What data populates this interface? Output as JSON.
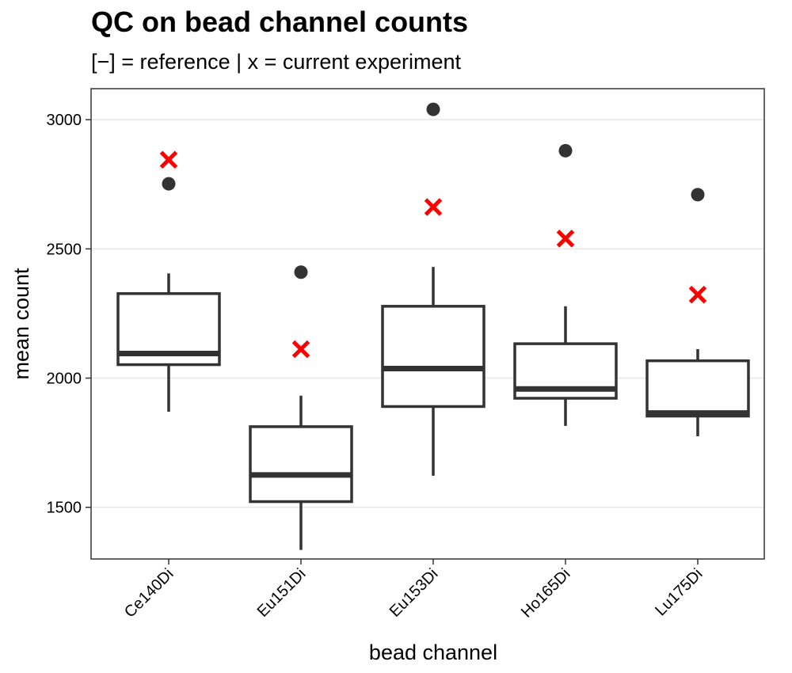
{
  "chart_data": {
    "type": "boxplot",
    "title": "QC on bead channel counts",
    "subtitle": "[−] = reference | x = current experiment",
    "xlabel": "bead channel",
    "ylabel": "mean count",
    "ylim": [
      1300,
      3120
    ],
    "yticks": [
      1500,
      2000,
      2500,
      3000
    ],
    "grid": "horizontal",
    "categories": [
      "Ce140Di",
      "Eu151Di",
      "Eu153Di",
      "Ho165Di",
      "Lu175Di"
    ],
    "boxes": [
      {
        "category": "Ce140Di",
        "whisker_low": 1870,
        "q1": 2052,
        "median": 2095,
        "q3": 2327,
        "whisker_high": 2405,
        "outliers": [
          2752
        ],
        "current": 2845
      },
      {
        "category": "Eu151Di",
        "whisker_low": 1335,
        "q1": 1522,
        "median": 1625,
        "q3": 1812,
        "whisker_high": 1932,
        "outliers": [
          2410
        ],
        "current": 2112
      },
      {
        "category": "Eu153Di",
        "whisker_low": 1622,
        "q1": 1890,
        "median": 2037,
        "q3": 2278,
        "whisker_high": 2430,
        "outliers": [
          3040
        ],
        "current": 2662
      },
      {
        "category": "Ho165Di",
        "whisker_low": 1815,
        "q1": 1922,
        "median": 1958,
        "q3": 2133,
        "whisker_high": 2278,
        "outliers": [
          2880
        ],
        "current": 2540
      },
      {
        "category": "Lu175Di",
        "whisker_low": 1775,
        "q1": 1853,
        "median": 1865,
        "q3": 2067,
        "whisker_high": 2112,
        "outliers": [
          2710
        ],
        "current": 2323
      }
    ],
    "colors": {
      "box": "#333333",
      "outlier": "#333333",
      "current": "#ff0000",
      "grid": "#ebebeb",
      "panel_border": "#333333"
    }
  }
}
